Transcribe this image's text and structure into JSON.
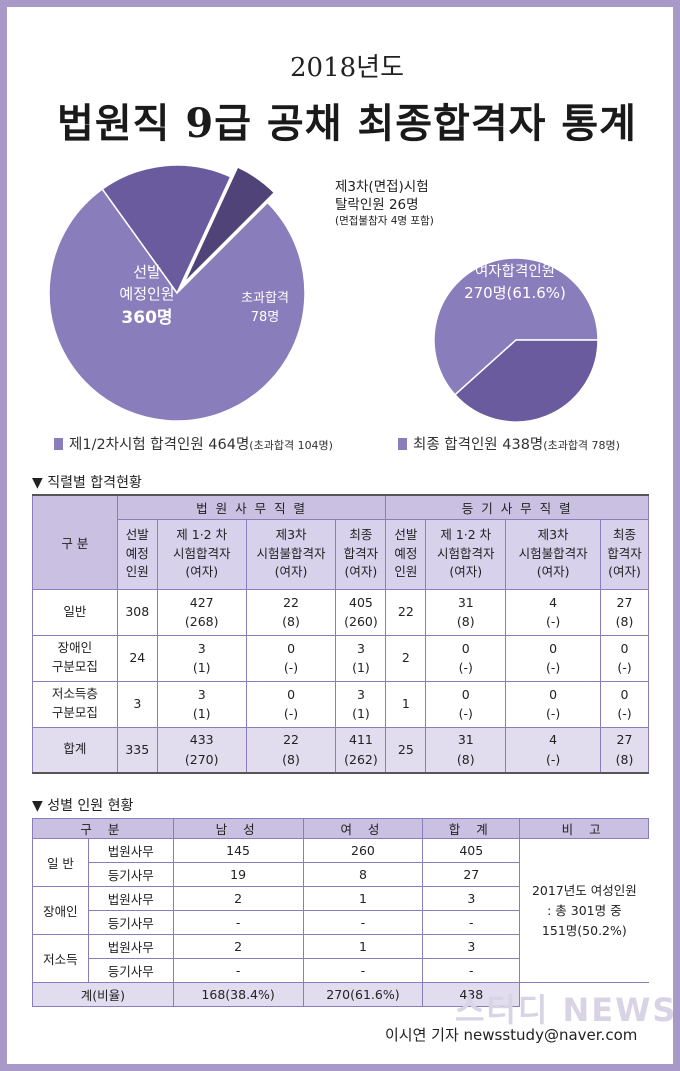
{
  "header": {
    "year": "2018년도",
    "title": "법원직 9급 공채 최종합격자 통계"
  },
  "chart_data": [
    {
      "type": "pie",
      "slices": [
        {
          "name": "선발 예정인원",
          "value": 360
        },
        {
          "name": "초과합격",
          "value": 78
        },
        {
          "name": "제3차(면접)시험 탈락인원",
          "value": 26
        }
      ],
      "labels": {
        "main": [
          "선발",
          "예정인원",
          "360명"
        ],
        "excess": [
          "초과합격",
          "78명"
        ],
        "dropped": [
          "제3차(면접)시험",
          "탈락인원 26명"
        ],
        "dropped_note": "(면접불참자 4명 포함)"
      },
      "colors": {
        "main": "#8a7dbb",
        "excess": "#6a5b9e",
        "dropped": "#4f4377"
      },
      "legend": {
        "text": "제1/2차시험 합격인원 464명",
        "note": "(초과합격 104명)"
      }
    },
    {
      "type": "pie",
      "slices": [
        {
          "name": "여자합격인원",
          "value": 270
        },
        {
          "name": "남자합격인원",
          "value": 168
        }
      ],
      "labels": {
        "women": [
          "여자합격인원",
          "270명(61.6%)"
        ]
      },
      "colors": {
        "women": "#8a7dbb",
        "men": "#6a5b9e"
      },
      "legend": {
        "text": "최종 합격인원 438명",
        "note": "(초과합격 78명)"
      }
    }
  ],
  "table1": {
    "section_title": "▼ 직렬별 합격현황",
    "group_label": "구 분",
    "groups": [
      "법 원 사 무 직 렬",
      "등 기 사 무 직 렬"
    ],
    "col_heads": [
      [
        "선발",
        "예정",
        "인원"
      ],
      [
        "제 1·2 차",
        "시험합격자",
        "(여자)"
      ],
      [
        "제3차",
        "시험불합격자",
        "(여자)"
      ],
      [
        "최종",
        "합격자",
        "(여자)"
      ],
      [
        "선발",
        "예정",
        "인원"
      ],
      [
        "제 1·2 차",
        "시험합격자",
        "(여자)"
      ],
      [
        "제3차",
        "시험불합격자",
        "(여자)"
      ],
      [
        "최종",
        "합격자",
        "(여자)"
      ]
    ],
    "rows": [
      {
        "label": [
          "일반"
        ],
        "cells": [
          [
            "308"
          ],
          [
            "427",
            "(268)"
          ],
          [
            "22",
            "(8)"
          ],
          [
            "405",
            "(260)"
          ],
          [
            "22"
          ],
          [
            "31",
            "(8)"
          ],
          [
            "4",
            "(-)"
          ],
          [
            "27",
            "(8)"
          ]
        ]
      },
      {
        "label": [
          "장애인",
          "구분모집"
        ],
        "cells": [
          [
            "24"
          ],
          [
            "3",
            "(1)"
          ],
          [
            "0",
            "(-)"
          ],
          [
            "3",
            "(1)"
          ],
          [
            "2"
          ],
          [
            "0",
            "(-)"
          ],
          [
            "0",
            "(-)"
          ],
          [
            "0",
            "(-)"
          ]
        ]
      },
      {
        "label": [
          "저소득층",
          "구분모집"
        ],
        "cells": [
          [
            "3"
          ],
          [
            "3",
            "(1)"
          ],
          [
            "0",
            "(-)"
          ],
          [
            "3",
            "(1)"
          ],
          [
            "1"
          ],
          [
            "0",
            "(-)"
          ],
          [
            "0",
            "(-)"
          ],
          [
            "0",
            "(-)"
          ]
        ]
      },
      {
        "label": [
          "합계"
        ],
        "cells": [
          [
            "335"
          ],
          [
            "433",
            "(270)"
          ],
          [
            "22",
            "(8)"
          ],
          [
            "411",
            "(262)"
          ],
          [
            "25"
          ],
          [
            "31",
            "(8)"
          ],
          [
            "4",
            "(-)"
          ],
          [
            "27",
            "(8)"
          ]
        ]
      }
    ]
  },
  "table2": {
    "section_title": "▼ 성별 인원 현황",
    "headers": [
      "구 분",
      "남 성",
      "여 성",
      "합 계",
      "비 고"
    ],
    "groups": [
      {
        "name": "일 반",
        "rows": [
          [
            "법원사무",
            "145",
            "260",
            "405"
          ],
          [
            "등기사무",
            "19",
            "8",
            "27"
          ]
        ]
      },
      {
        "name": "장애인",
        "rows": [
          [
            "법원사무",
            "2",
            "1",
            "3"
          ],
          [
            "등기사무",
            "-",
            "-",
            "-"
          ]
        ]
      },
      {
        "name": "저소득",
        "rows": [
          [
            "법원사무",
            "2",
            "1",
            "3"
          ],
          [
            "등기사무",
            "-",
            "-",
            "-"
          ]
        ]
      }
    ],
    "total": [
      "계(비율)",
      "168(38.4%)",
      "270(61.6%)",
      "438"
    ],
    "note": [
      "2017년도 여성인원",
      ": 총 301명 중",
      "151명(50.2%)"
    ]
  },
  "footer": {
    "watermark": "스터디 NEWS",
    "byline": "이시연 기자  newsstudy@naver.com"
  }
}
